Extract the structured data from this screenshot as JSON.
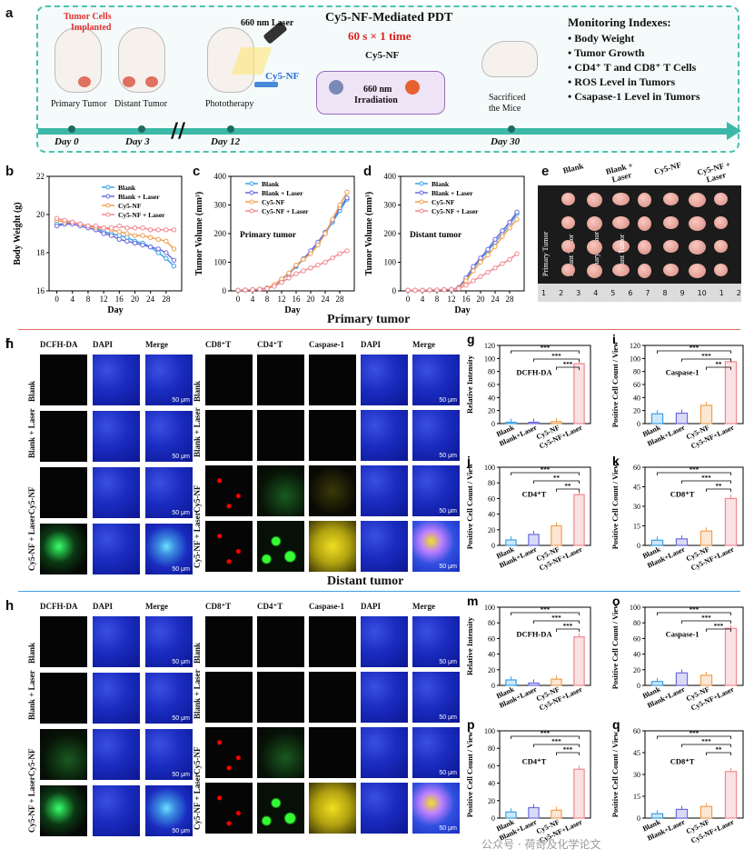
{
  "panel_a": {
    "label": "a",
    "tumor_cells": "Tumor Cells",
    "implanted": "Implanted",
    "laser_label": "660 nm Laser",
    "cy5nf_label": "Cy5-NF",
    "title": "Cy5-NF-Mediated PDT",
    "dose": "60 s × 1 time",
    "sub": "Cy5-NF",
    "irr1": "660 nm",
    "irr2": "Irradiation",
    "primary": "Primary Tumor",
    "distant": "Distant Tumor",
    "photo": "Phototherapy",
    "sacrificed1": "Sacrificed",
    "sacrificed2": "the Mice",
    "day0": "Day 0",
    "day3": "Day 3",
    "day12": "Day 12",
    "day30": "Day 30",
    "monitor_title": "Monitoring Indexes:",
    "monitor": [
      "Body Weight",
      "Tumor Growth",
      "CD4⁺ T  and CD8⁺ T Cells",
      "ROS Level in Tumors",
      "Csapase-1 Level in Tumors"
    ]
  },
  "line_legend": [
    "Blank",
    "Blank + Laser",
    "Cy5-NF",
    "Cy5-NF + Laser"
  ],
  "series_colors": [
    "#3aa0e8",
    "#6a6ae0",
    "#f0a050",
    "#f08890"
  ],
  "chart_data": [
    {
      "type": "line",
      "label": "b",
      "xlabel": "Day",
      "ylabel": "Body Weight (g)",
      "ylim": [
        16,
        22
      ],
      "yticks": [
        16,
        18,
        20,
        22
      ],
      "xticks": [
        0,
        4,
        8,
        12,
        16,
        20,
        24,
        28
      ],
      "x": [
        0,
        2,
        4,
        6,
        8,
        10,
        12,
        14,
        16,
        18,
        20,
        22,
        24,
        26,
        28,
        30
      ],
      "series": [
        {
          "name": "Blank",
          "values": [
            19.5,
            19.5,
            19.6,
            19.5,
            19.4,
            19.3,
            19.1,
            19.0,
            18.9,
            18.8,
            18.6,
            18.5,
            18.3,
            18.0,
            17.7,
            17.3
          ]
        },
        {
          "name": "Blank + Laser",
          "values": [
            19.4,
            19.5,
            19.5,
            19.4,
            19.3,
            19.2,
            19.0,
            18.9,
            18.7,
            18.6,
            18.5,
            18.4,
            18.3,
            18.2,
            18.0,
            17.6
          ]
        },
        {
          "name": "Cy5-NF",
          "values": [
            19.7,
            19.6,
            19.6,
            19.5,
            19.4,
            19.3,
            19.3,
            19.2,
            19.1,
            19.0,
            18.9,
            18.9,
            18.8,
            18.7,
            18.6,
            18.2
          ]
        },
        {
          "name": "Cy5-NF + Laser",
          "values": [
            19.8,
            19.7,
            19.6,
            19.5,
            19.4,
            19.4,
            19.3,
            19.3,
            19.4,
            19.3,
            19.3,
            19.3,
            19.2,
            19.2,
            19.2,
            19.2
          ]
        }
      ]
    },
    {
      "type": "line",
      "label": "c",
      "inner": "Primary tumor",
      "xlabel": "Day",
      "ylabel": "Tumor Volume (mm³)",
      "ylim": [
        0,
        400
      ],
      "yticks": [
        0,
        100,
        200,
        300,
        400
      ],
      "xticks": [
        0,
        4,
        8,
        12,
        16,
        20,
        24,
        28
      ],
      "x": [
        0,
        2,
        4,
        6,
        8,
        10,
        12,
        14,
        16,
        18,
        20,
        22,
        24,
        26,
        28,
        30
      ],
      "series": [
        {
          "name": "Blank",
          "values": [
            2,
            3,
            4,
            6,
            10,
            20,
            40,
            60,
            85,
            110,
            135,
            165,
            200,
            240,
            280,
            320
          ]
        },
        {
          "name": "Blank + Laser",
          "values": [
            2,
            3,
            4,
            6,
            10,
            20,
            40,
            60,
            88,
            112,
            140,
            170,
            205,
            245,
            290,
            325
          ]
        },
        {
          "name": "Cy5-NF",
          "values": [
            2,
            3,
            4,
            6,
            10,
            22,
            42,
            62,
            90,
            110,
            130,
            160,
            200,
            250,
            300,
            345
          ]
        },
        {
          "name": "Cy5-NF + Laser",
          "values": [
            2,
            3,
            4,
            6,
            8,
            16,
            30,
            45,
            60,
            70,
            80,
            90,
            100,
            115,
            130,
            140
          ]
        }
      ]
    },
    {
      "type": "line",
      "label": "d",
      "inner": "Distant tumor",
      "xlabel": "Day",
      "ylabel": "Tumor Volume (mm³)",
      "ylim": [
        0,
        400
      ],
      "yticks": [
        0,
        100,
        200,
        300,
        400
      ],
      "xticks": [
        0,
        4,
        8,
        12,
        16,
        20,
        24,
        28
      ],
      "x": [
        0,
        2,
        4,
        6,
        8,
        10,
        12,
        14,
        16,
        18,
        20,
        22,
        24,
        26,
        28,
        30
      ],
      "series": [
        {
          "name": "Blank",
          "values": [
            2,
            2,
            2,
            3,
            3,
            4,
            5,
            10,
            40,
            80,
            110,
            140,
            170,
            200,
            230,
            270
          ]
        },
        {
          "name": "Blank + Laser",
          "values": [
            2,
            2,
            2,
            3,
            3,
            4,
            5,
            12,
            45,
            85,
            115,
            145,
            180,
            210,
            240,
            275
          ]
        },
        {
          "name": "Cy5-NF",
          "values": [
            2,
            2,
            2,
            3,
            3,
            4,
            5,
            10,
            35,
            70,
            100,
            125,
            155,
            190,
            220,
            250
          ]
        },
        {
          "name": "Cy5-NF + Laser",
          "values": [
            2,
            2,
            2,
            3,
            3,
            4,
            5,
            8,
            20,
            35,
            50,
            65,
            80,
            95,
            110,
            130
          ]
        }
      ]
    },
    {
      "type": "bar",
      "label": "g",
      "inner": "DCFH-DA",
      "ylabel": "Relative Intensity",
      "ylim": [
        0,
        120
      ],
      "yticks": [
        0,
        20,
        40,
        60,
        80,
        100,
        120
      ],
      "categories": [
        "Blank",
        "Blank+Laser",
        "Cy5-NF",
        "Cy5-NF+Laser"
      ],
      "values": [
        2,
        2,
        3,
        92
      ],
      "sig": [
        "***",
        "***",
        "***"
      ]
    },
    {
      "type": "bar",
      "label": "i",
      "inner": "Caspase-1",
      "ylabel": "Positive Cell Count / View",
      "ylim": [
        0,
        120
      ],
      "yticks": [
        0,
        20,
        40,
        60,
        80,
        100,
        120
      ],
      "categories": [
        "Blank",
        "Blank+Laser",
        "Cy5-NF",
        "Cy5-NF+Laser"
      ],
      "values": [
        15,
        16,
        28,
        95
      ],
      "sig": [
        "***",
        "***",
        "**"
      ]
    },
    {
      "type": "bar",
      "label": "j",
      "inner": "CD4⁺T",
      "ylabel": "Positive Cell Count / View",
      "ylim": [
        0,
        100
      ],
      "yticks": [
        0,
        20,
        40,
        60,
        80,
        100
      ],
      "categories": [
        "Blank",
        "Blank+Laser",
        "Cy5-NF",
        "Cy5-NF+Laser"
      ],
      "values": [
        7,
        14,
        25,
        65
      ],
      "sig": [
        "***",
        "**",
        "**"
      ]
    },
    {
      "type": "bar",
      "label": "k",
      "inner": "CD8⁺T",
      "ylabel": "Positive Cell Count / View",
      "ylim": [
        0,
        60
      ],
      "yticks": [
        0,
        15,
        30,
        45,
        60
      ],
      "categories": [
        "Blank",
        "Blank+Laser",
        "Cy5-NF",
        "Cy5-NF+Laser"
      ],
      "values": [
        4,
        5,
        11,
        36
      ],
      "sig": [
        "***",
        "***",
        "**"
      ]
    },
    {
      "type": "bar",
      "label": "m",
      "inner": "DCFH-DA",
      "ylabel": "Relative Intensity",
      "ylim": [
        0,
        100
      ],
      "yticks": [
        0,
        20,
        40,
        60,
        80,
        100
      ],
      "categories": [
        "Blank",
        "Blank+Laser",
        "Cy5-NF",
        "Cy5-NF+Laser"
      ],
      "values": [
        7,
        3,
        8,
        62
      ],
      "sig": [
        "***",
        "***",
        "***"
      ]
    },
    {
      "type": "bar",
      "label": "o",
      "inner": "Caspase-1",
      "ylabel": "Positive Cell Count / View",
      "ylim": [
        0,
        100
      ],
      "yticks": [
        0,
        20,
        40,
        60,
        80,
        100
      ],
      "categories": [
        "Blank",
        "Blank+Laser",
        "Cy5-NF",
        "Cy5-NF+Laser"
      ],
      "values": [
        5,
        16,
        13,
        73
      ],
      "sig": [
        "***",
        "***",
        "***"
      ]
    },
    {
      "type": "bar",
      "label": "p",
      "inner": "CD4⁺T",
      "ylabel": "Positive Cell Count / View",
      "ylim": [
        0,
        100
      ],
      "yticks": [
        0,
        20,
        40,
        60,
        80,
        100
      ],
      "categories": [
        "Blank",
        "Blank+Laser",
        "Cy5-NF",
        "Cy5-NF+Laser"
      ],
      "values": [
        7,
        12,
        9,
        56
      ],
      "sig": [
        "***",
        "***",
        "***"
      ]
    },
    {
      "type": "bar",
      "label": "q",
      "inner": "CD8⁺T",
      "ylabel": "Positive Cell Count / View",
      "ylim": [
        0,
        60
      ],
      "yticks": [
        0,
        15,
        30,
        45,
        60
      ],
      "categories": [
        "Blank",
        "Blank+Laser",
        "Cy5-NF",
        "Cy5-NF+Laser"
      ],
      "values": [
        3,
        6,
        8,
        32
      ],
      "sig": [
        "***",
        "***",
        "**"
      ]
    }
  ],
  "panel_e": {
    "label": "e",
    "groups": [
      "Blank",
      "Blank +\nLaser",
      "Cy5-NF",
      "Cy5-NF +\nLaser"
    ],
    "rows": [
      "Primary Tumor",
      "Distant Tumor",
      "Primary Tumor",
      "Distant Tumor"
    ],
    "ruler": [
      "1",
      "2",
      "3",
      "4",
      "5",
      "6",
      "7",
      "8",
      "9",
      "10",
      "1",
      "2"
    ]
  },
  "sections": {
    "primary": "Primary tumor",
    "distant": "Distant tumor"
  },
  "panel_f": {
    "label": "f",
    "cols": [
      "DCFH-DA",
      "DAPI",
      "Merge"
    ]
  },
  "panel_h": {
    "label": "h",
    "cols": [
      "CD8⁺T",
      "CD4⁺T",
      "Caspase-1",
      "DAPI",
      "Merge"
    ]
  },
  "panel_l": {
    "label": "l",
    "cols": [
      "DCFH-DA",
      "DAPI",
      "Merge"
    ]
  },
  "panel_n": {
    "label": "n",
    "cols": [
      "CD8⁺T",
      "CD4⁺T",
      "Caspase-1",
      "DAPI",
      "Merge"
    ]
  },
  "row_labels": [
    "Blank",
    "Blank + Laser",
    "Cy5-NF",
    "Cy5-NF + Laser"
  ],
  "scale_bar": "50 μm",
  "watermark": "公众号 · 荷奇及化学论文"
}
